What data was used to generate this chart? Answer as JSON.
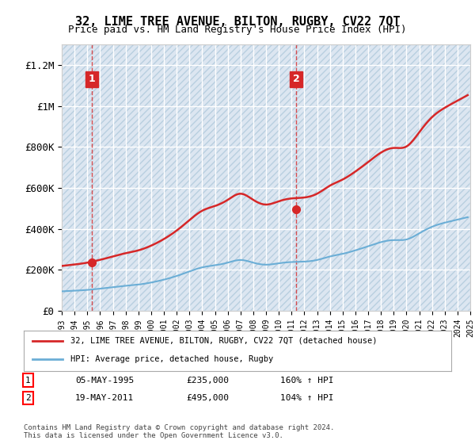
{
  "title": "32, LIME TREE AVENUE, BILTON, RUGBY, CV22 7QT",
  "subtitle": "Price paid vs. HM Land Registry's House Price Index (HPI)",
  "xlabel": "",
  "ylabel": "",
  "ylim": [
    0,
    1300000
  ],
  "yticks": [
    0,
    200000,
    400000,
    600000,
    800000,
    1000000,
    1200000
  ],
  "ytick_labels": [
    "£0",
    "£200K",
    "£400K",
    "£600K",
    "£800K",
    "£1M",
    "£1.2M"
  ],
  "background_color": "#ffffff",
  "plot_bg_color": "#dce6f1",
  "grid_color": "#ffffff",
  "hatch_color": "#c0cfe0",
  "sale1_date_idx": 2.4,
  "sale1_price": 235000,
  "sale1_label": "1",
  "sale2_date_idx": 18.4,
  "sale2_price": 495000,
  "sale2_label": "2",
  "legend_line1": "32, LIME TREE AVENUE, BILTON, RUGBY, CV22 7QT (detached house)",
  "legend_line2": "HPI: Average price, detached house, Rugby",
  "table_row1": [
    "1",
    "05-MAY-1995",
    "£235,000",
    "160% ↑ HPI"
  ],
  "table_row2": [
    "2",
    "19-MAY-2011",
    "£495,000",
    "104% ↑ HPI"
  ],
  "footer": "Contains HM Land Registry data © Crown copyright and database right 2024.\nThis data is licensed under the Open Government Licence v3.0.",
  "hpi_color": "#6baed6",
  "price_color": "#d62728",
  "dashed_line_color": "#d62728",
  "years": [
    1993,
    1994,
    1995,
    1996,
    1997,
    1998,
    1999,
    2000,
    2001,
    2002,
    2003,
    2004,
    2005,
    2006,
    2007,
    2008,
    2009,
    2010,
    2011,
    2012,
    2013,
    2014,
    2015,
    2016,
    2017,
    2018,
    2019,
    2020,
    2021,
    2022,
    2023,
    2024,
    2025
  ],
  "hpi_values": [
    95000,
    98000,
    102000,
    108000,
    115000,
    122000,
    128000,
    138000,
    152000,
    170000,
    192000,
    212000,
    222000,
    235000,
    248000,
    235000,
    225000,
    232000,
    238000,
    240000,
    248000,
    265000,
    278000,
    295000,
    315000,
    335000,
    345000,
    348000,
    378000,
    410000,
    430000,
    445000,
    460000
  ],
  "price_values_x": [
    1993.0,
    1993.3,
    1993.6,
    1993.9,
    1994.2,
    1994.5,
    1994.8,
    1995.1,
    1995.4,
    1995.7,
    1996.0,
    1996.3,
    1996.6,
    1996.9,
    1997.2,
    1997.5,
    1997.8,
    1998.1,
    1998.4,
    1998.7,
    1999.0,
    1999.3,
    1999.6,
    1999.9,
    2000.2,
    2000.5,
    2000.8,
    2001.1,
    2001.4,
    2001.7,
    2002.0,
    2002.3,
    2002.6,
    2002.9,
    2003.2,
    2003.5,
    2003.8,
    2004.1,
    2004.4,
    2004.7,
    2005.0,
    2005.3,
    2005.6,
    2005.9,
    2006.2,
    2006.5,
    2006.8,
    2007.1,
    2007.4,
    2007.7,
    2008.0,
    2008.3,
    2008.6,
    2008.9,
    2009.2,
    2009.5,
    2009.8,
    2010.1,
    2010.4,
    2010.7,
    2011.0,
    2011.3,
    2011.6,
    2011.9,
    2012.2,
    2012.5,
    2012.8,
    2013.1,
    2013.4,
    2013.7,
    2014.0,
    2014.3,
    2014.6,
    2014.9,
    2015.2,
    2015.5,
    2015.8,
    2016.1,
    2016.4,
    2016.7,
    2017.0,
    2017.3,
    2017.6,
    2017.9,
    2018.2,
    2018.5,
    2018.8,
    2019.1,
    2019.4,
    2019.7,
    2020.0,
    2020.3,
    2020.6,
    2020.9,
    2021.2,
    2021.5,
    2021.8,
    2022.1,
    2022.4,
    2022.7,
    2023.0,
    2023.3,
    2023.6,
    2023.9,
    2024.2,
    2024.5
  ],
  "xtick_years": [
    1993,
    1994,
    1995,
    1996,
    1997,
    1998,
    1999,
    2000,
    2001,
    2002,
    2003,
    2004,
    2005,
    2006,
    2007,
    2008,
    2009,
    2010,
    2011,
    2012,
    2013,
    2014,
    2015,
    2016,
    2017,
    2018,
    2019,
    2020,
    2021,
    2022,
    2023,
    2024,
    2025
  ]
}
